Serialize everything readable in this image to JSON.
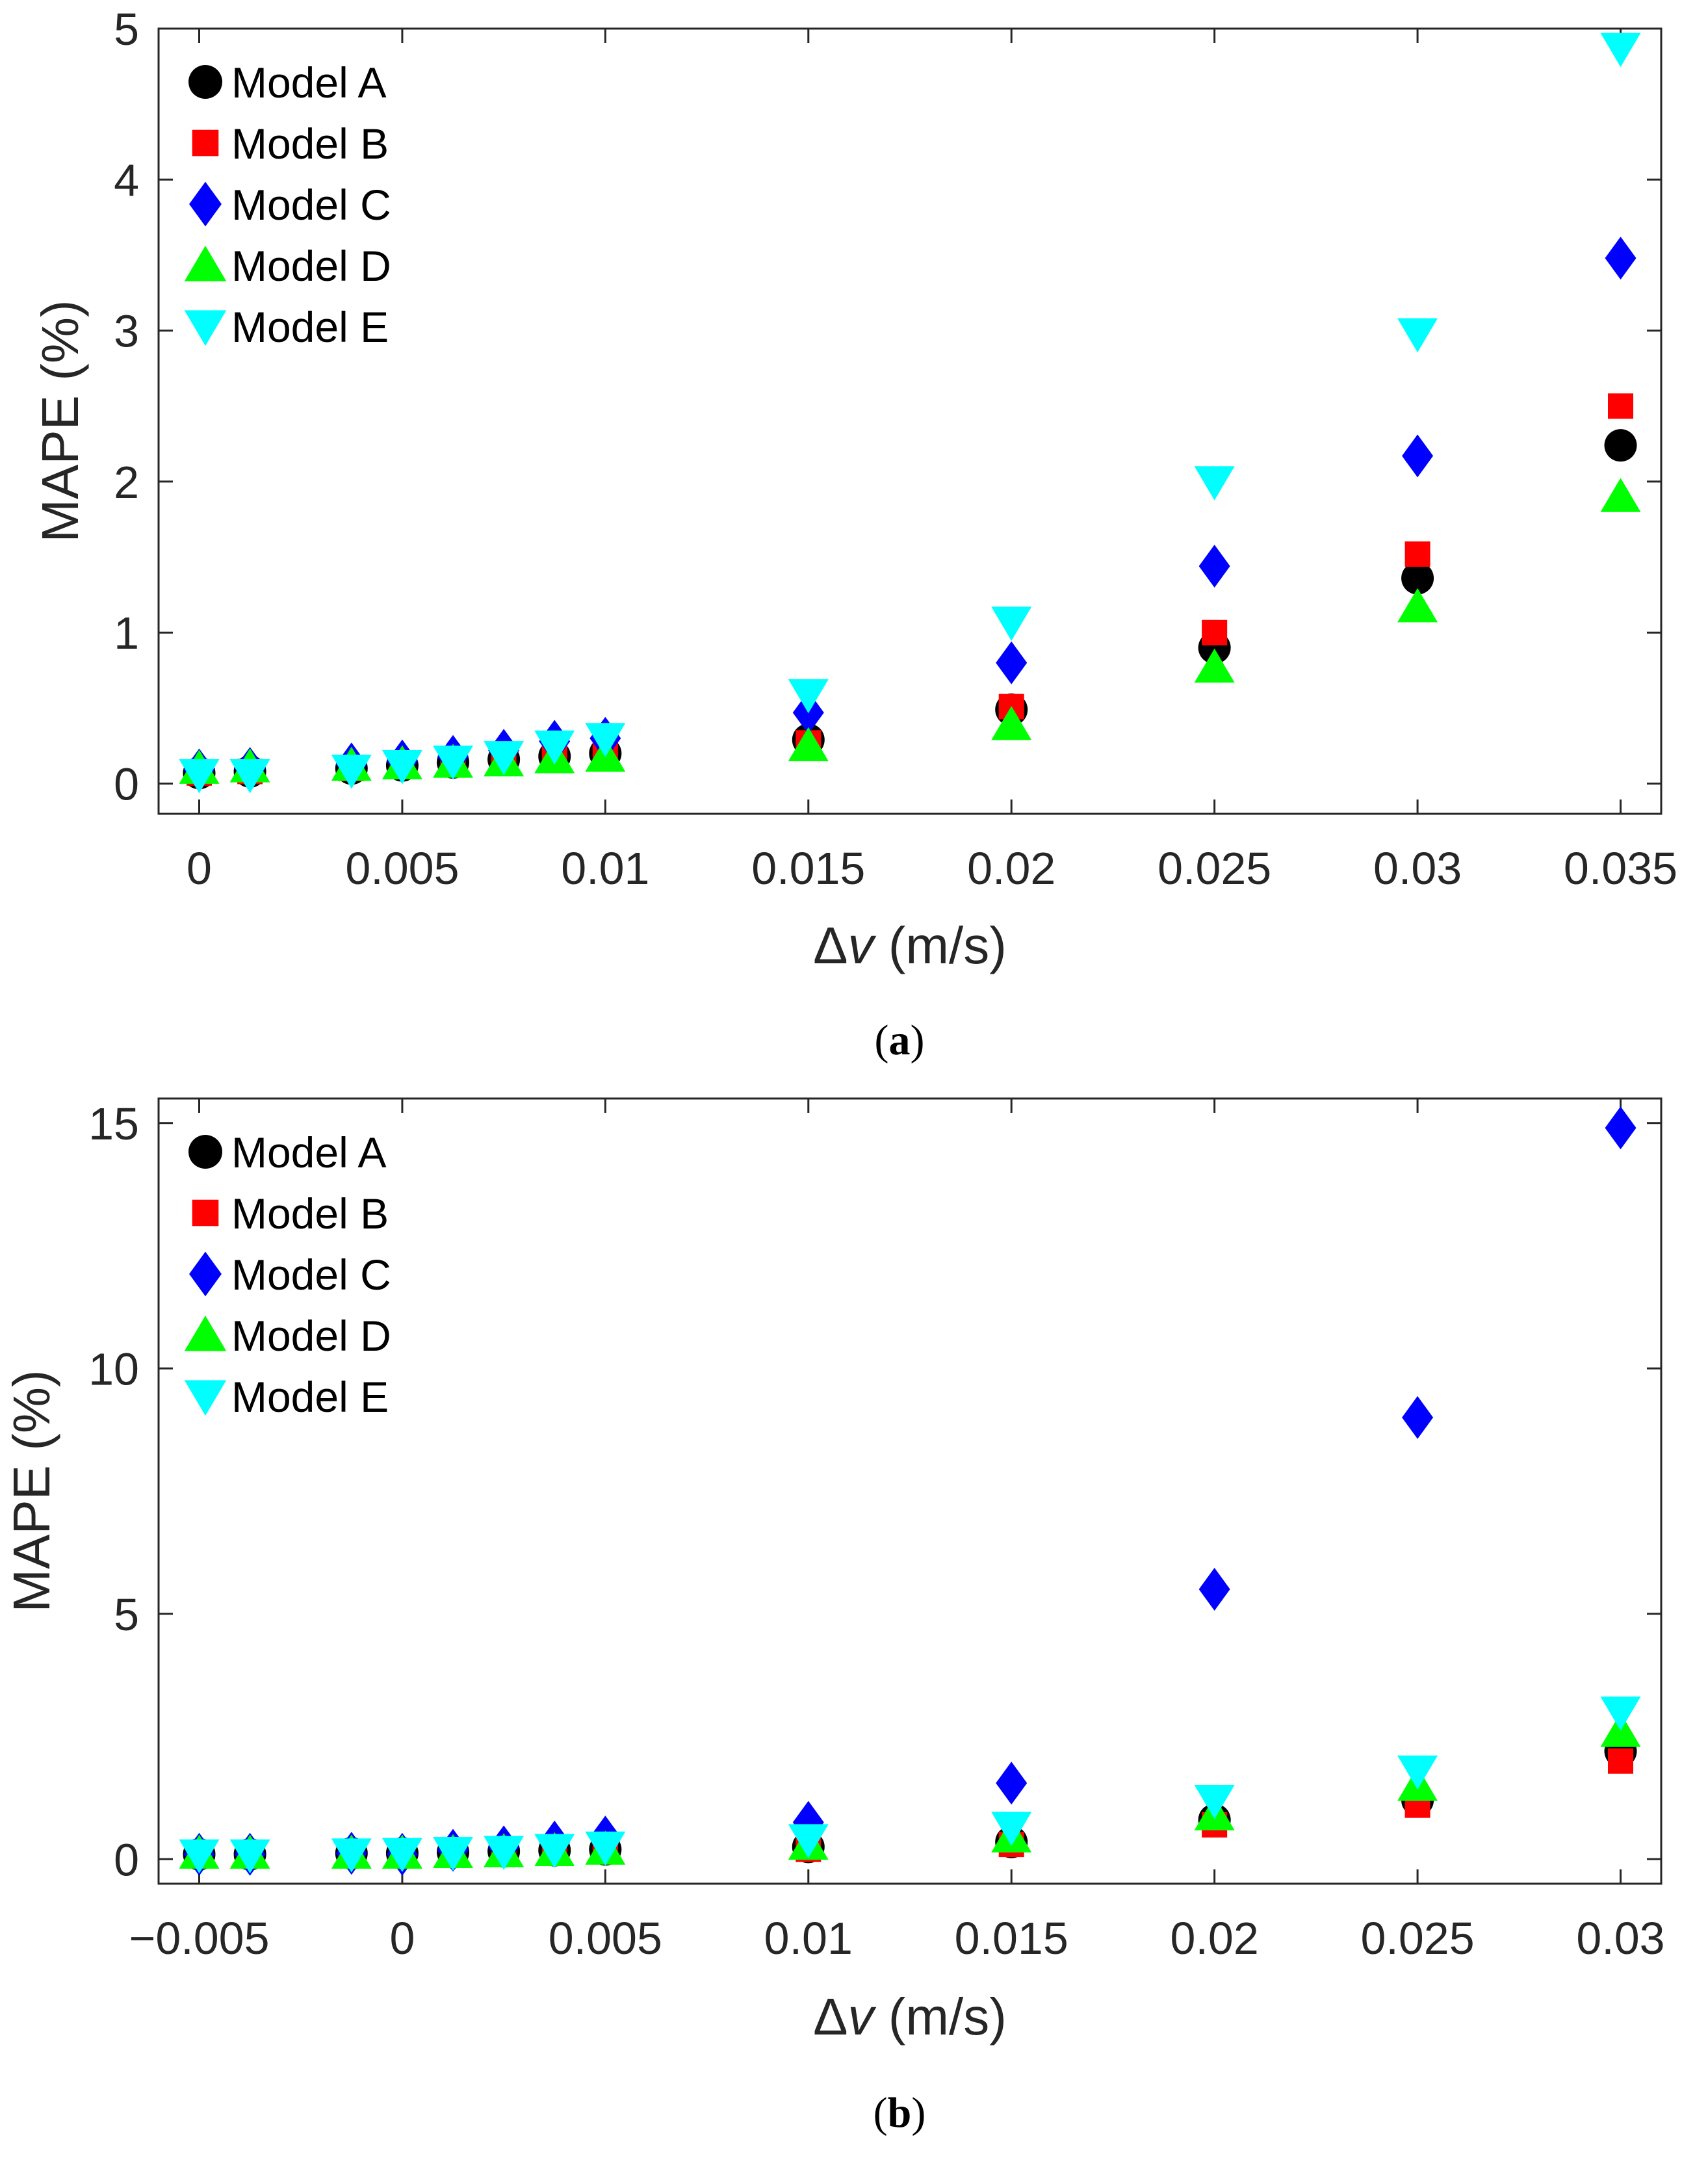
{
  "legend": {
    "position": "top-left",
    "entries": [
      {
        "name": "Model A",
        "marker": "circle",
        "color": "#000000"
      },
      {
        "name": "Model B",
        "marker": "square",
        "color": "#ff0000"
      },
      {
        "name": "Model C",
        "marker": "diamond",
        "color": "#0000ff"
      },
      {
        "name": "Model D",
        "marker": "triangle-up",
        "color": "#00ff00"
      },
      {
        "name": "Model E",
        "marker": "triangle-down",
        "color": "#00ffff"
      }
    ]
  },
  "chart_data": [
    {
      "type": "scatter",
      "caption_open": "(",
      "caption_letter": "a",
      "caption_close": ")",
      "xlabel_prefix": "Δ",
      "xlabel_var": "v",
      "xlabel_suffix": " (m/s)",
      "ylabel": "MAPE (%)",
      "xlim": [
        -0.001,
        0.036
      ],
      "ylim": [
        -0.2,
        5.0
      ],
      "xticks": [
        0,
        0.005,
        0.01,
        0.015,
        0.02,
        0.025,
        0.03,
        0.035
      ],
      "xtick_labels": [
        "0",
        "0.005",
        "0.01",
        "0.015",
        "0.02",
        "0.025",
        "0.03",
        "0.035"
      ],
      "yticks": [
        0,
        1,
        2,
        3,
        4,
        5
      ],
      "ytick_labels": [
        "0",
        "1",
        "2",
        "3",
        "4",
        "5"
      ],
      "x": [
        0,
        0.00125,
        0.00375,
        0.005,
        0.00625,
        0.0075,
        0.00875,
        0.01,
        0.015,
        0.02,
        0.025,
        0.03,
        0.035
      ],
      "series": [
        {
          "name": "Model A",
          "values": [
            0.07,
            0.08,
            0.1,
            0.12,
            0.14,
            0.16,
            0.18,
            0.2,
            0.29,
            0.49,
            0.9,
            1.36,
            2.24
          ]
        },
        {
          "name": "Model B",
          "values": [
            0.07,
            0.08,
            0.1,
            0.12,
            0.14,
            0.16,
            0.18,
            0.19,
            0.27,
            0.51,
            1.0,
            1.52,
            2.5
          ]
        },
        {
          "name": "Model C",
          "values": [
            0.09,
            0.1,
            0.13,
            0.15,
            0.18,
            0.22,
            0.28,
            0.3,
            0.47,
            0.8,
            1.44,
            2.17,
            3.48
          ]
        },
        {
          "name": "Model D",
          "values": [
            0.1,
            0.11,
            0.12,
            0.13,
            0.14,
            0.15,
            0.17,
            0.18,
            0.25,
            0.39,
            0.77,
            1.17,
            1.9
          ]
        },
        {
          "name": "Model E",
          "values": [
            0.06,
            0.06,
            0.09,
            0.12,
            0.15,
            0.18,
            0.25,
            0.3,
            0.59,
            1.07,
            2.0,
            2.98,
            4.87
          ]
        }
      ]
    },
    {
      "type": "scatter",
      "caption_open": "(",
      "caption_letter": "b",
      "caption_close": ")",
      "xlabel_prefix": "Δ",
      "xlabel_var": "v",
      "xlabel_suffix": " (m/s)",
      "ylabel": "MAPE (%)",
      "xlim": [
        -0.006,
        0.031
      ],
      "ylim": [
        -0.5,
        15.5
      ],
      "xticks": [
        -0.005,
        0,
        0.005,
        0.01,
        0.015,
        0.02,
        0.025,
        0.03
      ],
      "xtick_labels": [
        "−0.005",
        "0",
        "0.005",
        "0.01",
        "0.015",
        "0.02",
        "0.025",
        "0.03"
      ],
      "yticks": [
        0,
        5,
        10,
        15
      ],
      "ytick_labels": [
        "0",
        "5",
        "10",
        "15"
      ],
      "x": [
        -0.005,
        -0.00375,
        -0.00125,
        0,
        0.00125,
        0.0025,
        0.00375,
        0.005,
        0.01,
        0.015,
        0.02,
        0.025,
        0.03
      ],
      "series": [
        {
          "name": "Model A",
          "values": [
            0.1,
            0.1,
            0.12,
            0.12,
            0.14,
            0.16,
            0.18,
            0.2,
            0.25,
            0.35,
            0.8,
            1.2,
            2.2
          ]
        },
        {
          "name": "Model B",
          "values": [
            0.08,
            0.08,
            0.1,
            0.1,
            0.12,
            0.14,
            0.16,
            0.18,
            0.2,
            0.3,
            0.7,
            1.1,
            2.0
          ]
        },
        {
          "name": "Model C",
          "values": [
            0.1,
            0.1,
            0.12,
            0.1,
            0.18,
            0.25,
            0.35,
            0.45,
            0.75,
            1.55,
            5.5,
            9.0,
            14.9
          ]
        },
        {
          "name": "Model D",
          "values": [
            0.12,
            0.12,
            0.12,
            0.12,
            0.13,
            0.15,
            0.17,
            0.2,
            0.3,
            0.45,
            0.9,
            1.5,
            2.6
          ]
        },
        {
          "name": "Model E",
          "values": [
            0.09,
            0.09,
            0.11,
            0.12,
            0.14,
            0.16,
            0.2,
            0.25,
            0.4,
            0.65,
            1.2,
            1.8,
            3.0
          ]
        }
      ]
    }
  ]
}
